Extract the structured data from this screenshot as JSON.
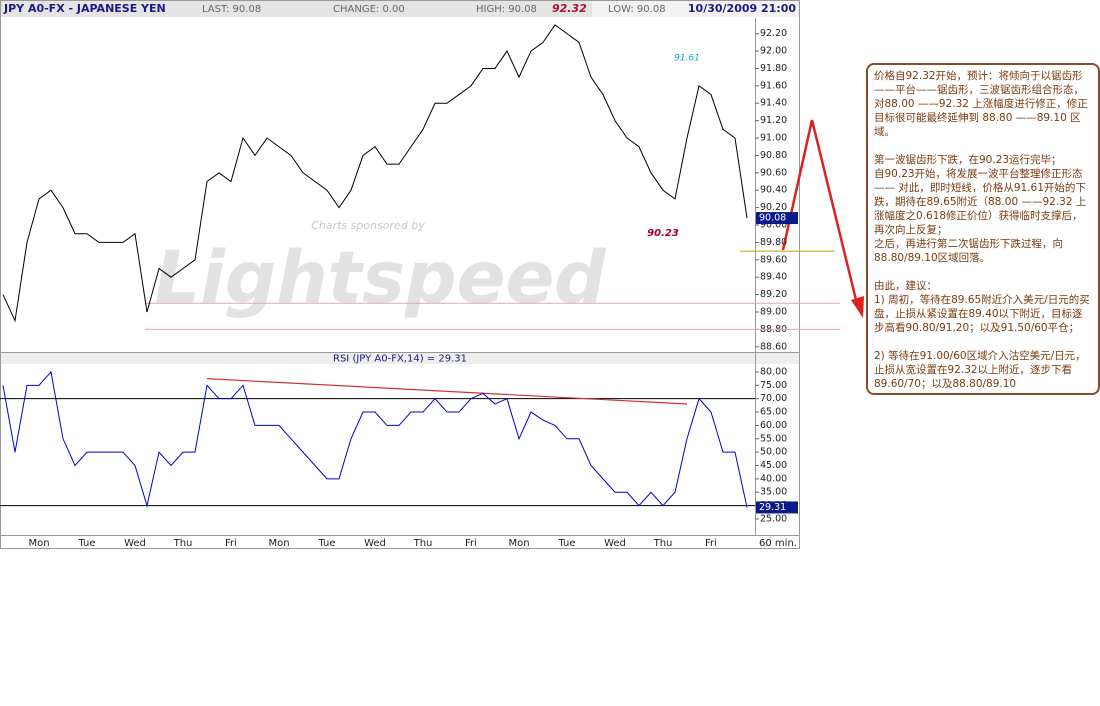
{
  "header": {
    "symbol": "JPY A0-FX - JAPANESE YEN",
    "last": "LAST: 90.08",
    "change": "CHANGE: 0.00",
    "high": "HIGH: 90.08",
    "peak": "92.32",
    "low": "LOW: 90.08",
    "datetime": "10/30/2009 21:00"
  },
  "chart_data": [
    {
      "type": "line",
      "color": "#000000",
      "values": [
        89.2,
        88.9,
        89.8,
        90.3,
        90.4,
        90.2,
        89.9,
        89.9,
        89.8,
        89.8,
        89.8,
        89.9,
        89.0,
        89.5,
        89.4,
        89.5,
        89.6,
        90.5,
        90.6,
        90.5,
        91.0,
        90.8,
        91.0,
        90.9,
        90.8,
        90.6,
        90.5,
        90.4,
        90.2,
        90.4,
        90.8,
        90.9,
        90.7,
        90.7,
        90.9,
        91.1,
        91.4,
        91.4,
        91.5,
        91.6,
        91.8,
        91.8,
        92.0,
        91.7,
        92.0,
        92.1,
        92.3,
        92.2,
        92.1,
        91.7,
        91.5,
        91.2,
        91.0,
        90.9,
        90.6,
        90.4,
        90.3,
        91.0,
        91.6,
        91.5,
        91.1,
        91.0,
        90.08
      ],
      "ylim": [
        88.54,
        92.38
      ],
      "yticks": [
        {
          "value": 88.6,
          "label": "88.60"
        },
        {
          "value": 88.8,
          "label": "88.80"
        },
        {
          "value": 89.0,
          "label": "89.00"
        },
        {
          "value": 89.2,
          "label": "89.20"
        },
        {
          "value": 89.4,
          "label": "89.40"
        },
        {
          "value": 89.6,
          "label": "89.60"
        },
        {
          "value": 89.8,
          "label": "89.80"
        },
        {
          "value": 90.0,
          "label": "90.00"
        },
        {
          "value": 90.2,
          "label": "90.20"
        },
        {
          "value": 90.4,
          "label": "90.40"
        },
        {
          "value": 90.6,
          "label": "90.60"
        },
        {
          "value": 90.8,
          "label": "90.80"
        },
        {
          "value": 91.0,
          "label": "91.00"
        },
        {
          "value": 91.2,
          "label": "91.20"
        },
        {
          "value": 91.4,
          "label": "91.40"
        },
        {
          "value": 91.6,
          "label": "91.60"
        },
        {
          "value": 91.8,
          "label": "91.80"
        },
        {
          "value": 92.0,
          "label": "92.00"
        },
        {
          "value": 92.2,
          "label": "92.20"
        }
      ],
      "levels": [
        {
          "value": 89.7,
          "color": "#b8a000"
        },
        {
          "value": 89.1,
          "color": "#e8a8a8"
        },
        {
          "value": 88.8,
          "color": "#e8a8a8"
        }
      ],
      "annotations": [
        {
          "x": 57,
          "value": 91.61,
          "color": "#1aa6d8"
        },
        {
          "x": 55,
          "value": 90.23,
          "color": "#990033"
        }
      ],
      "watermark": [
        "Charts sponsored by",
        "Lightspeed"
      ]
    },
    {
      "type": "line",
      "title": "RSI (JPY A0-FX,14) = 29.31",
      "color": "#0000cc",
      "categories": [
        null,
        null,
        null,
        "Mon",
        null,
        null,
        null,
        "Tue",
        null,
        null,
        null,
        "Wed",
        null,
        null,
        null,
        "Thu",
        null,
        null,
        null,
        "Fri",
        null,
        null,
        null,
        "Mon",
        null,
        null,
        null,
        "Tue",
        null,
        null,
        null,
        "Wed",
        null,
        null,
        null,
        "Thu",
        null,
        null,
        null,
        "Fri",
        null,
        null,
        null,
        "Mon",
        null,
        null,
        null,
        "Tue",
        null,
        null,
        null,
        "Wed",
        null,
        null,
        null,
        "Thu",
        null,
        null,
        null,
        "Fri",
        null,
        null,
        null
      ],
      "x_label": "60 min.",
      "values": [
        75,
        50,
        75,
        75,
        80,
        55,
        45,
        50,
        50,
        50,
        50,
        45,
        30,
        50,
        45,
        50,
        50,
        75,
        70,
        70,
        75,
        60,
        60,
        60,
        55,
        50,
        45,
        40,
        40,
        55,
        65,
        65,
        60,
        60,
        65,
        65,
        70,
        65,
        65,
        70,
        72,
        68,
        70,
        55,
        65,
        62,
        60,
        55,
        55,
        45,
        40,
        35,
        35,
        30,
        35,
        30,
        35,
        55,
        70,
        65,
        50,
        50,
        29.31
      ],
      "ylim": [
        19,
        82.6
      ],
      "yticks": [
        {
          "value": 25,
          "label": "25.00"
        },
        {
          "value": 30,
          "label": "30.00"
        },
        {
          "value": 35,
          "label": "35.00"
        },
        {
          "value": 40,
          "label": "40.00"
        },
        {
          "value": 45,
          "label": "45.00"
        },
        {
          "value": 50,
          "label": "50.00"
        },
        {
          "value": 55,
          "label": "55.00"
        },
        {
          "value": 60,
          "label": "60.00"
        },
        {
          "value": 65,
          "label": "65.00"
        },
        {
          "value": 70,
          "label": "70.00"
        },
        {
          "value": 75,
          "label": "75.00"
        },
        {
          "value": 80,
          "label": "80.00"
        }
      ],
      "levels": [
        {
          "value": 70,
          "color": "#000000"
        },
        {
          "value": 30,
          "color": "#000000"
        }
      ],
      "trendline": {
        "x": [
          17,
          57
        ],
        "y": [
          77.5,
          68
        ],
        "color": "#cc3333"
      }
    }
  ],
  "note": {
    "paragraphs": [
      [
        "价格自92.32开始，预计：将倾向于以锯齿形——平台——锯齿形，三波锯齿形组合形态，对88.00 ——92.32 上涨幅度进行修正，修正目标很可能最终延伸到 88.80 ——89.10 区域。"
      ],
      [
        "第一波锯齿形下跌，在90.23运行完毕；",
        "自90.23开始，将发展一波平台整理修正形态 —— 对此，即时短线，价格从91.61开始的下跌，期待在89.65附近（88.00 ——92.32 上涨幅度之0.618修正价位）获得临时支撑后，再次向上反复；",
        "之后，再进行第二次锯齿形下跌过程，向 88.80/89.10区域回落。"
      ],
      [
        "由此，建议：",
        "1) 周初，等待在89.65附近介入美元/日元的买盘，止损从紧设置在89.40以下附近，目标逐步高看90.80/91.20；以及91.50/60平仓；"
      ],
      [
        "2) 等待在91.00/60区域介入沽空美元/日元，止损从宽设置在92.32以上附近，逐步下看89.60/70；以及88.80/89.10"
      ]
    ]
  }
}
